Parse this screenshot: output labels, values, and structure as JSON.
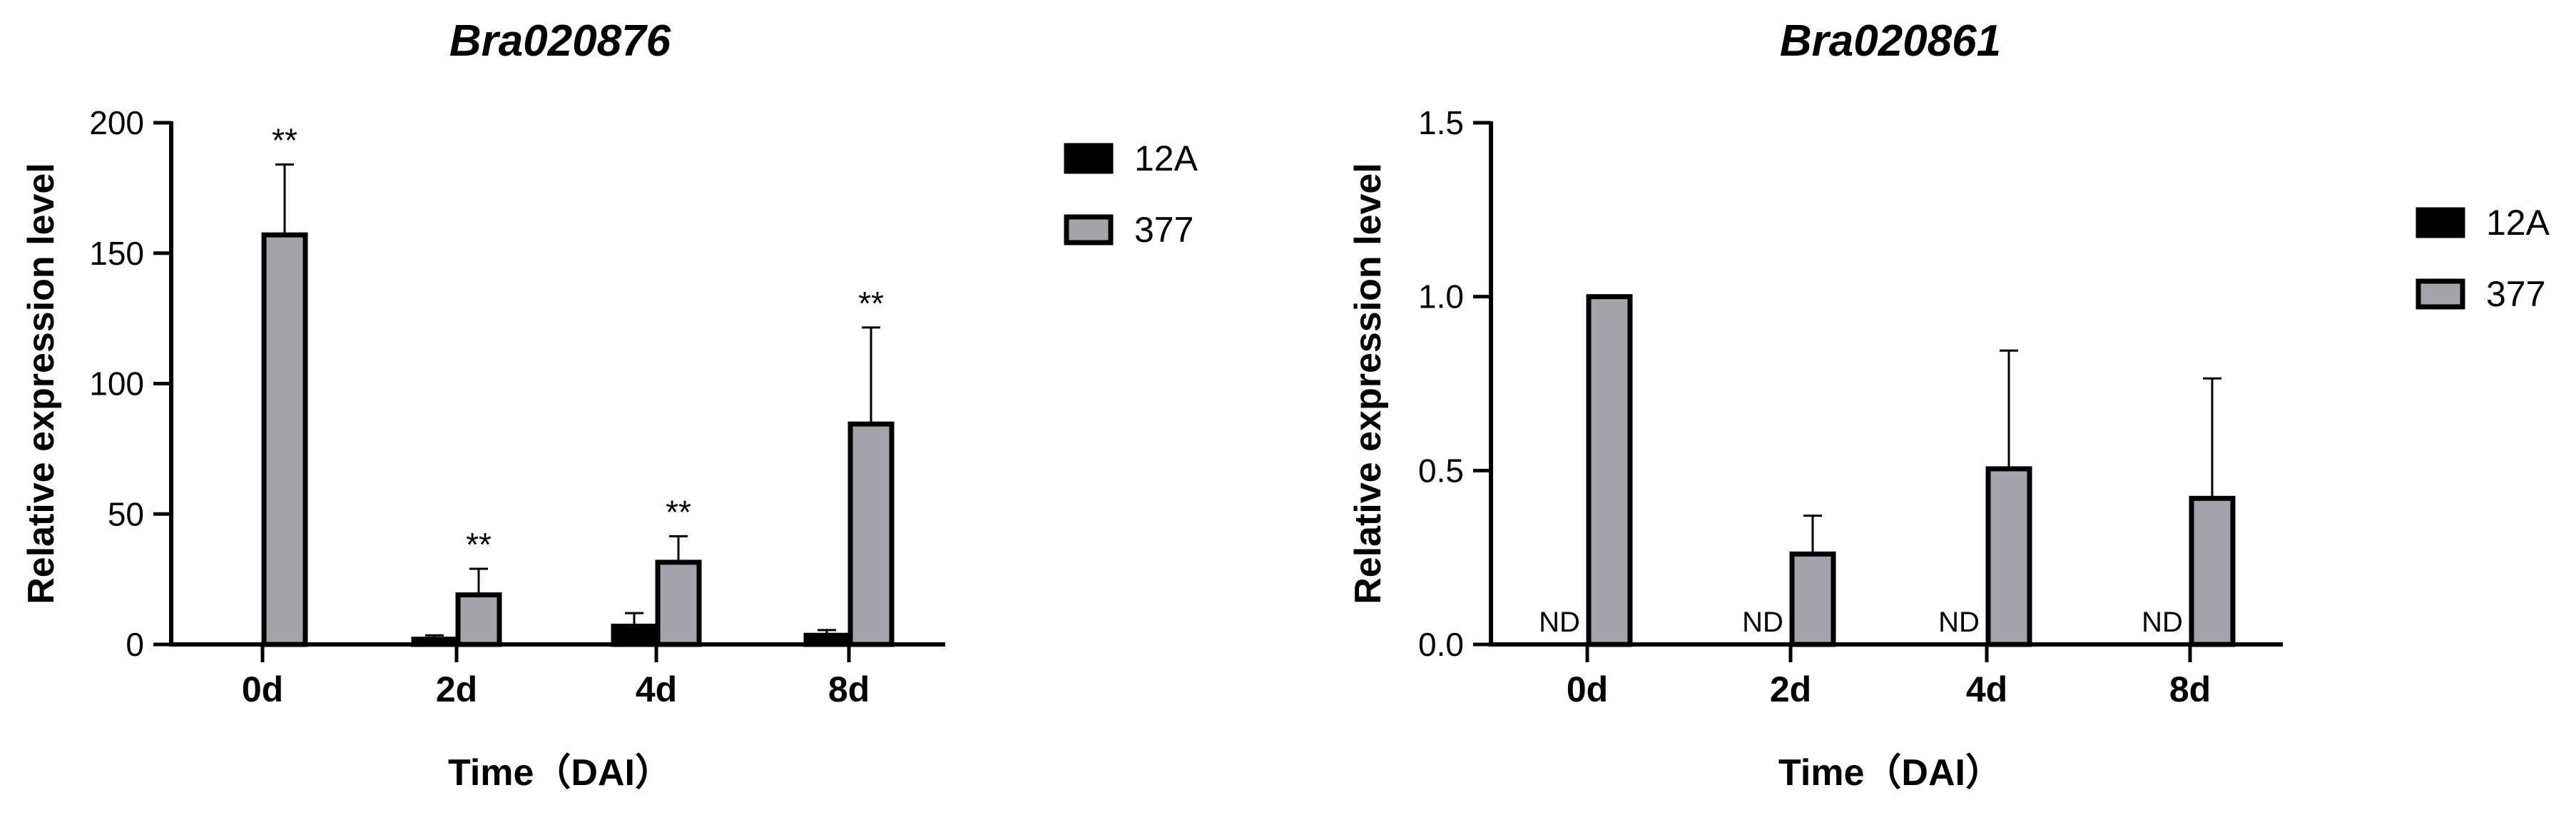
{
  "chart_data": [
    {
      "type": "bar",
      "title": "Bra020876",
      "xlabel": "Time（DAI）",
      "ylabel": "Relative expression level",
      "categories": [
        "0d",
        "2d",
        "4d",
        "8d"
      ],
      "ylim": [
        0,
        200
      ],
      "yticks": [
        0,
        50,
        100,
        150,
        200
      ],
      "grid": false,
      "legend_position": "right",
      "series": [
        {
          "name": "12A",
          "color": "#000000",
          "values": [
            0,
            2,
            7,
            3.5
          ],
          "errors": [
            0,
            1.5,
            5,
            2
          ]
        },
        {
          "name": "377",
          "color": "#a3a3a9",
          "values": [
            157,
            19,
            31.5,
            84.5
          ],
          "errors": [
            27,
            10,
            10,
            37
          ]
        }
      ],
      "annotations": [
        {
          "category": "0d",
          "series": "377",
          "text": "**"
        },
        {
          "category": "2d",
          "series": "377",
          "text": "**"
        },
        {
          "category": "4d",
          "series": "377",
          "text": "**"
        },
        {
          "category": "8d",
          "series": "377",
          "text": "**"
        }
      ]
    },
    {
      "type": "bar",
      "title": "Bra020861",
      "xlabel": "Time（DAI）",
      "ylabel": "Relative expression level",
      "categories": [
        "0d",
        "2d",
        "4d",
        "8d"
      ],
      "ylim": [
        0,
        1.5
      ],
      "yticks": [
        0.0,
        0.5,
        1.0,
        1.5
      ],
      "grid": false,
      "legend_position": "right",
      "series": [
        {
          "name": "12A",
          "color": "#000000",
          "values": [
            0,
            0,
            0,
            0
          ],
          "errors": [
            0,
            0,
            0,
            0
          ]
        },
        {
          "name": "377",
          "color": "#a3a3a9",
          "values": [
            1.0,
            0.26,
            0.505,
            0.42
          ],
          "errors": [
            0,
            0.11,
            0.34,
            0.345
          ]
        }
      ],
      "annotations": [
        {
          "category": "0d",
          "series": "12A",
          "text": "ND"
        },
        {
          "category": "2d",
          "series": "12A",
          "text": "ND"
        },
        {
          "category": "4d",
          "series": "12A",
          "text": "ND"
        },
        {
          "category": "8d",
          "series": "12A",
          "text": "ND"
        }
      ]
    }
  ]
}
